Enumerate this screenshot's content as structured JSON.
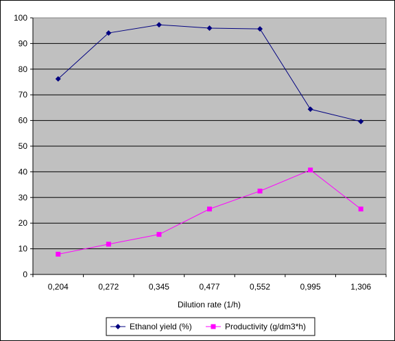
{
  "chart_data": {
    "type": "line",
    "categories": [
      "0,204",
      "0,272",
      "0,345",
      "0,477",
      "0,552",
      "0,995",
      "1,306"
    ],
    "xlabel": "Dilution rate (1/h)",
    "ylabel": "",
    "ylim": [
      0,
      100
    ],
    "yticks": [
      "0",
      "10",
      "20",
      "30",
      "40",
      "50",
      "60",
      "70",
      "80",
      "90",
      "100"
    ],
    "grid": "horizontal",
    "plot_background": "#c0c0c0",
    "legend_position": "bottom",
    "series": [
      {
        "name": "Ethanol yield (%)",
        "values": [
          76.2,
          94.1,
          97.3,
          96.0,
          95.7,
          64.4,
          59.6
        ],
        "color": "#000080",
        "marker": "diamond"
      },
      {
        "name": "Productivity (g/dm3*h)",
        "values": [
          7.9,
          11.8,
          15.6,
          25.5,
          32.5,
          40.7,
          25.5
        ],
        "color": "#ff00ff",
        "marker": "square"
      }
    ]
  }
}
